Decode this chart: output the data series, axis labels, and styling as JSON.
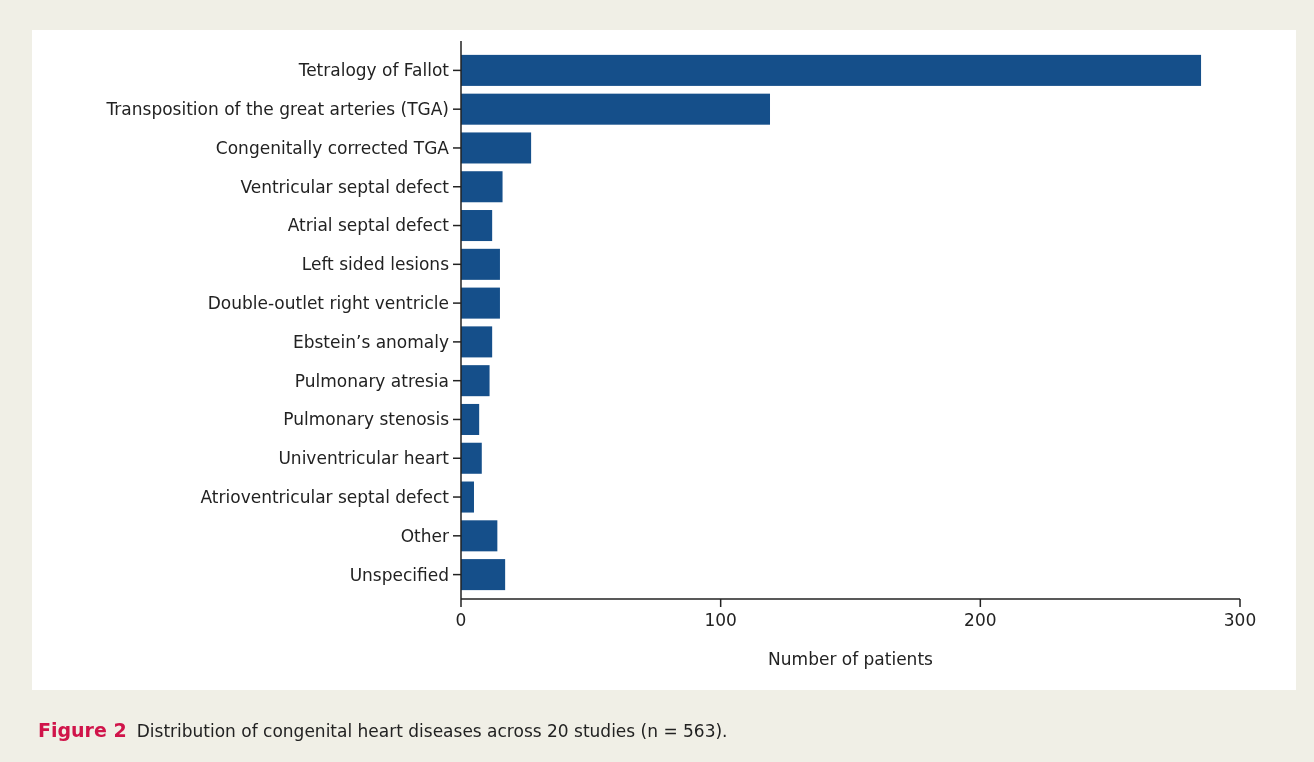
{
  "chart_data": {
    "type": "bar",
    "orientation": "horizontal",
    "xlabel": "Number of patients",
    "categories": [
      "Tetralogy of Fallot",
      "Transposition of the great arteries (TGA)",
      "Congenitally corrected TGA",
      "Ventricular septal defect",
      "Atrial septal defect",
      "Left sided lesions",
      "Double-outlet right ventricle",
      "Ebstein’s anomaly",
      "Pulmonary atresia",
      "Pulmonary stenosis",
      "Univentricular heart",
      "Atrioventricular septal defect",
      "Other",
      "Unspecified"
    ],
    "values": [
      285,
      119,
      27,
      16,
      12,
      15,
      15,
      12,
      11,
      7,
      8,
      5,
      14,
      17
    ],
    "color": "#154f8a",
    "xlim": [
      0,
      300
    ],
    "xticks": [
      0,
      100,
      200,
      300
    ],
    "grid": false,
    "annotations": [
      "Figure 2",
      "Distribution of congenital heart diseases across 20 studies (n = 563)."
    ]
  }
}
